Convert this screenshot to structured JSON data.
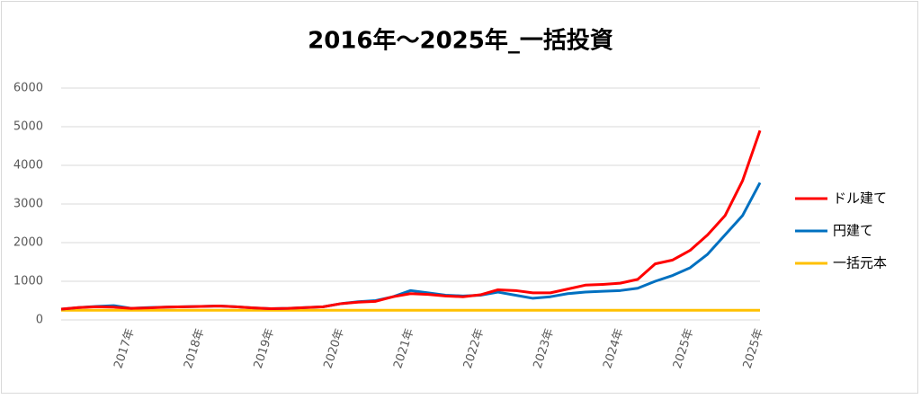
{
  "chart_data": {
    "type": "line",
    "title": "2016年～2025年_一括投資",
    "categories": [
      null,
      null,
      null,
      null,
      "2017年",
      null,
      null,
      null,
      "2018年",
      null,
      null,
      null,
      "2019年",
      null,
      null,
      null,
      "2020年",
      null,
      null,
      null,
      "2021年",
      null,
      null,
      null,
      "2022年",
      null,
      null,
      null,
      "2023年",
      null,
      null,
      null,
      "2024年",
      null,
      null,
      null,
      "2025年",
      null,
      null,
      null,
      "2025年"
    ],
    "series": [
      {
        "name": "ドル建て",
        "color": "#ff0000",
        "values": [
          280,
          320,
          340,
          330,
          300,
          310,
          330,
          340,
          350,
          360,
          340,
          310,
          290,
          300,
          320,
          340,
          420,
          460,
          480,
          600,
          680,
          660,
          620,
          600,
          650,
          780,
          760,
          700,
          700,
          800,
          900,
          920,
          950,
          1050,
          1450,
          1550,
          1800,
          2200,
          2700,
          3600,
          4900
        ]
      },
      {
        "name": "円建て",
        "color": "#0070c0",
        "values": [
          280,
          320,
          350,
          370,
          300,
          320,
          330,
          340,
          350,
          360,
          340,
          310,
          290,
          300,
          320,
          340,
          420,
          470,
          500,
          600,
          760,
          700,
          640,
          620,
          640,
          720,
          640,
          560,
          600,
          680,
          720,
          740,
          760,
          820,
          1000,
          1150,
          1350,
          1700,
          2200,
          2700,
          3550
        ]
      },
      {
        "name": "一括元本",
        "color": "#ffc000",
        "values": [
          250,
          250,
          250,
          250,
          250,
          250,
          250,
          250,
          250,
          250,
          250,
          250,
          250,
          250,
          250,
          250,
          250,
          250,
          250,
          250,
          250,
          250,
          250,
          250,
          250,
          250,
          250,
          250,
          250,
          250,
          250,
          250,
          250,
          250,
          250,
          250,
          250,
          250,
          250,
          250,
          250
        ]
      }
    ],
    "ylim": [
      0,
      6000
    ],
    "yticks": [
      0,
      1000,
      2000,
      3000,
      4000,
      5000,
      6000
    ],
    "grid": true,
    "legend": "right"
  }
}
